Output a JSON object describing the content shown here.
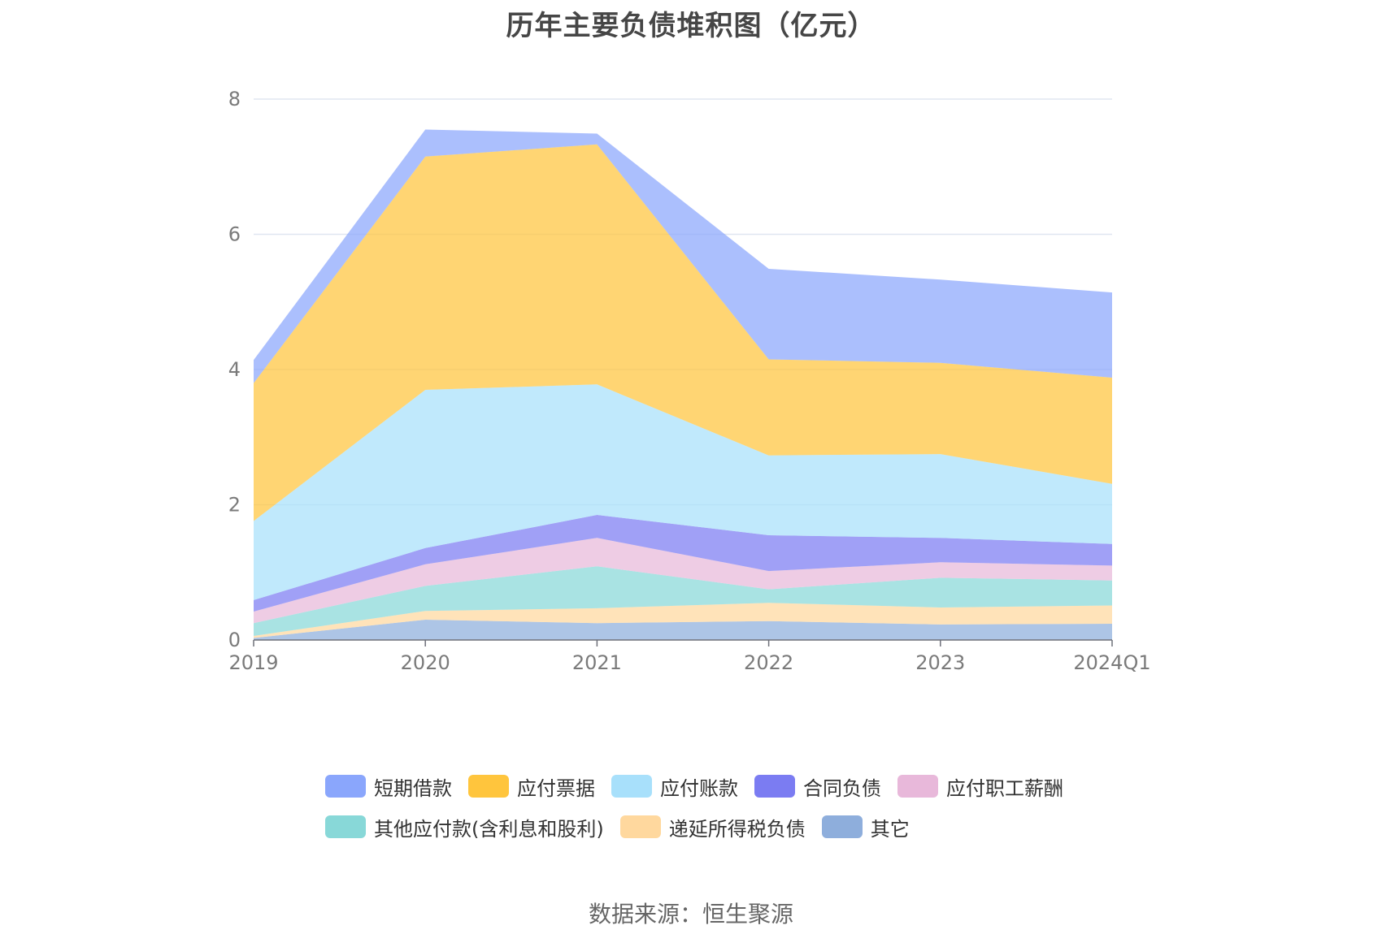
{
  "chart_data": {
    "type": "area",
    "stacked": true,
    "title": "历年主要负债堆积图（亿元）",
    "categories": [
      "2019",
      "2020",
      "2021",
      "2022",
      "2023",
      "2024Q1"
    ],
    "y_ticks": [
      "0",
      "2",
      "4",
      "6",
      "8"
    ],
    "ylim": [
      0,
      8
    ],
    "grid": true,
    "legend_position": "bottom",
    "series": [
      {
        "name": "其它",
        "color": "#8eaedc",
        "values": [
          0.03,
          0.3,
          0.25,
          0.28,
          0.23,
          0.24
        ]
      },
      {
        "name": "递延所得税负债",
        "color": "#ffd89e",
        "values": [
          0.03,
          0.13,
          0.22,
          0.27,
          0.25,
          0.27
        ]
      },
      {
        "name": "其他应付款(含利息和股利)",
        "color": "#88d8d8",
        "values": [
          0.19,
          0.37,
          0.62,
          0.2,
          0.44,
          0.37
        ]
      },
      {
        "name": "应付职工薪酬",
        "color": "#e8b8da",
        "values": [
          0.17,
          0.32,
          0.42,
          0.27,
          0.23,
          0.22
        ]
      },
      {
        "name": "合同负债",
        "color": "#7b7cf2",
        "values": [
          0.17,
          0.24,
          0.34,
          0.53,
          0.36,
          0.32
        ]
      },
      {
        "name": "应付账款",
        "color": "#a8e0fb",
        "values": [
          1.17,
          2.34,
          1.93,
          1.18,
          1.24,
          0.89
        ]
      },
      {
        "name": "应付票据",
        "color": "#ffc53d",
        "values": [
          2.04,
          3.45,
          3.55,
          1.42,
          1.35,
          1.57
        ]
      },
      {
        "name": "短期借款",
        "color": "#8aa6fc",
        "values": [
          0.34,
          0.4,
          0.16,
          1.34,
          1.23,
          1.26
        ]
      }
    ],
    "legend_order": [
      "短期借款",
      "应付票据",
      "应付账款",
      "合同负债",
      "应付职工薪酬",
      "其他应付款(含利息和股利)",
      "递延所得税负债",
      "其它"
    ]
  },
  "source": "数据来源：恒生聚源"
}
